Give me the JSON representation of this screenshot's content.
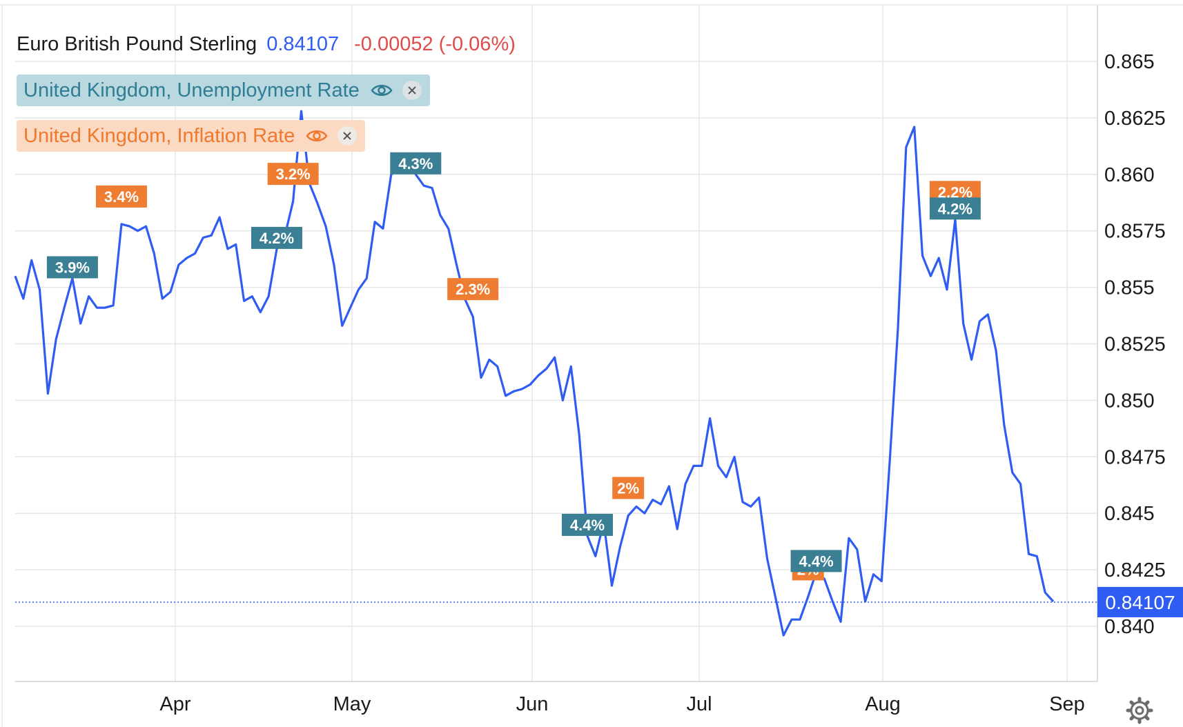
{
  "header": {
    "symbol": "Euro British Pound Sterling",
    "price": "0.84107",
    "change": "-0.00052 (-0.06%)"
  },
  "overlays": [
    {
      "label": "United Kingdom, Unemployment Rate",
      "color": "#3a7f94"
    },
    {
      "label": "United Kingdom, Inflation Rate",
      "color": "#ee7d31"
    }
  ],
  "colors": {
    "line": "#2f5cf2",
    "grid": "#e6e6e6",
    "price_tag": "#2f5cf2"
  },
  "icons": {
    "visibility": "eye-icon",
    "remove": "close-icon",
    "settings": "gear-icon"
  },
  "chart_data": {
    "type": "line",
    "series": [
      {
        "values": [
          0.8555,
          0.8545,
          0.8562,
          0.8549,
          0.8503,
          0.8527,
          0.8541,
          0.8554,
          0.8534,
          0.8546,
          0.8541,
          0.8541,
          0.8542,
          0.8578,
          0.8577,
          0.8575,
          0.8577,
          0.8565,
          0.8545,
          0.8548,
          0.856,
          0.8563,
          0.8565,
          0.8572,
          0.8573,
          0.8581,
          0.8567,
          0.8569,
          0.8544,
          0.8546,
          0.8539,
          0.8546,
          0.8567,
          0.8573,
          0.8588,
          0.8628,
          0.8596,
          0.8587,
          0.8577,
          0.856,
          0.8533,
          0.8541,
          0.8549,
          0.8554,
          0.8579,
          0.8576,
          0.86,
          0.8602,
          0.8608,
          0.86,
          0.8595,
          0.8594,
          0.8582,
          0.8576,
          0.856,
          0.8545,
          0.8537,
          0.851,
          0.8518,
          0.8515,
          0.8502,
          0.8504,
          0.8505,
          0.8507,
          0.8511,
          0.8514,
          0.8519,
          0.85,
          0.8515,
          0.8485,
          0.844,
          0.8431,
          0.8446,
          0.8418,
          0.8435,
          0.8449,
          0.8453,
          0.845,
          0.8456,
          0.8454,
          0.8462,
          0.8443,
          0.8463,
          0.8471,
          0.8471,
          0.8492,
          0.8471,
          0.8466,
          0.8475,
          0.8455,
          0.8453,
          0.8457,
          0.843,
          0.8413,
          0.8396,
          0.8403,
          0.8403,
          0.8413,
          0.8424,
          0.8421,
          0.8411,
          0.8402,
          0.8439,
          0.8434,
          0.8411,
          0.8423,
          0.842,
          0.8473,
          0.8532,
          0.8612,
          0.8621,
          0.8564,
          0.8555,
          0.8563,
          0.8549,
          0.858,
          0.8534,
          0.8518,
          0.8535,
          0.8538,
          0.8522,
          0.8489,
          0.8468,
          0.8463,
          0.8432,
          0.8431,
          0.8415,
          0.8411
        ]
      }
    ],
    "x_labels": [
      "Apr",
      "May",
      "Jun",
      "Jul",
      "Aug",
      "Sep"
    ],
    "y_ticks": [
      "0.840",
      "0.8425",
      "0.845",
      "0.8475",
      "0.850",
      "0.8525",
      "0.855",
      "0.8575",
      "0.860",
      "0.8625",
      "0.865"
    ],
    "ylim": [
      0.8375,
      0.8675
    ],
    "last_price": 0.84107,
    "last_price_label": "0.84107",
    "grid": true,
    "events": [
      {
        "label": "3.9%",
        "type": "unemployment",
        "index": 7
      },
      {
        "label": "3.4%",
        "type": "inflation",
        "index": 13
      },
      {
        "label": "4.2%",
        "type": "unemployment",
        "index": 32
      },
      {
        "label": "3.2%",
        "type": "inflation",
        "index": 34
      },
      {
        "label": "4.3%",
        "type": "unemployment",
        "index": 49
      },
      {
        "label": "2.3%",
        "type": "inflation",
        "index": 56
      },
      {
        "label": "4.4%",
        "type": "unemployment",
        "index": 70
      },
      {
        "label": "2%",
        "type": "inflation",
        "index": 75
      },
      {
        "label": "2%",
        "type": "inflation",
        "index": 97
      },
      {
        "label": "4.4%",
        "type": "unemployment",
        "index": 98
      },
      {
        "label": "2.2%",
        "type": "inflation",
        "index": 115
      },
      {
        "label": "4.2%",
        "type": "unemployment",
        "index": 115
      }
    ]
  }
}
